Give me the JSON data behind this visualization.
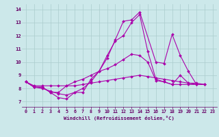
{
  "background_color": "#cce8ea",
  "line_color": "#aa00aa",
  "grid_color": "#aacccc",
  "xlabel": "Windchill (Refroidissement éolien,°C)",
  "xlabel_color": "#660066",
  "tick_color": "#660066",
  "ylim": [
    6.6,
    14.4
  ],
  "xlim": [
    -0.5,
    23.5
  ],
  "yticks": [
    7,
    8,
    9,
    10,
    11,
    12,
    13,
    14
  ],
  "xticks": [
    0,
    1,
    2,
    3,
    4,
    5,
    6,
    7,
    8,
    9,
    10,
    11,
    12,
    13,
    14,
    15,
    16,
    17,
    18,
    19,
    20,
    21,
    22,
    23
  ],
  "series": [
    [
      8.5,
      8.1,
      8.1,
      7.7,
      7.3,
      7.2,
      7.7,
      7.7,
      8.7,
      9.3,
      10.3,
      11.7,
      13.1,
      13.2,
      13.8,
      10.0,
      9.9,
      12.1,
      10.5,
      9.3,
      8.3,
      8.3
    ],
    [
      8.5,
      8.1,
      8.1,
      7.7,
      7.7,
      8.2,
      8.5,
      8.7,
      9.0,
      9.3,
      9.5,
      9.8,
      10.2,
      10.6,
      10.5,
      10.0,
      8.6,
      8.5,
      8.3,
      8.3,
      8.3,
      8.3
    ],
    [
      8.5,
      8.2,
      8.2,
      8.2,
      8.2,
      8.2,
      8.2,
      8.3,
      8.4,
      8.5,
      8.6,
      8.7,
      8.8,
      8.9,
      9.0,
      8.9,
      8.8,
      8.7,
      8.6,
      8.5,
      8.4,
      8.4,
      8.3
    ],
    [
      8.5,
      8.1,
      8.0,
      7.8,
      7.6,
      7.5,
      7.7,
      8.0,
      8.5,
      9.3,
      10.5,
      11.6,
      12.0,
      13.0,
      13.6,
      10.8,
      8.7,
      8.5,
      8.3,
      9.0,
      8.4,
      8.3,
      8.3
    ]
  ],
  "series_x": [
    [
      0,
      1,
      2,
      3,
      4,
      5,
      6,
      7,
      8,
      9,
      10,
      11,
      12,
      13,
      14,
      16,
      17,
      18,
      19,
      20,
      21,
      22
    ],
    [
      0,
      1,
      2,
      3,
      4,
      5,
      6,
      7,
      8,
      9,
      10,
      11,
      12,
      13,
      14,
      15,
      16,
      17,
      18,
      19,
      20,
      21
    ],
    [
      0,
      1,
      2,
      3,
      4,
      5,
      6,
      7,
      8,
      9,
      10,
      11,
      12,
      13,
      14,
      15,
      16,
      17,
      18,
      19,
      20,
      21,
      22
    ],
    [
      0,
      1,
      2,
      3,
      4,
      5,
      6,
      7,
      8,
      9,
      10,
      11,
      12,
      13,
      14,
      15,
      16,
      17,
      18,
      19,
      20,
      21,
      22
    ]
  ]
}
